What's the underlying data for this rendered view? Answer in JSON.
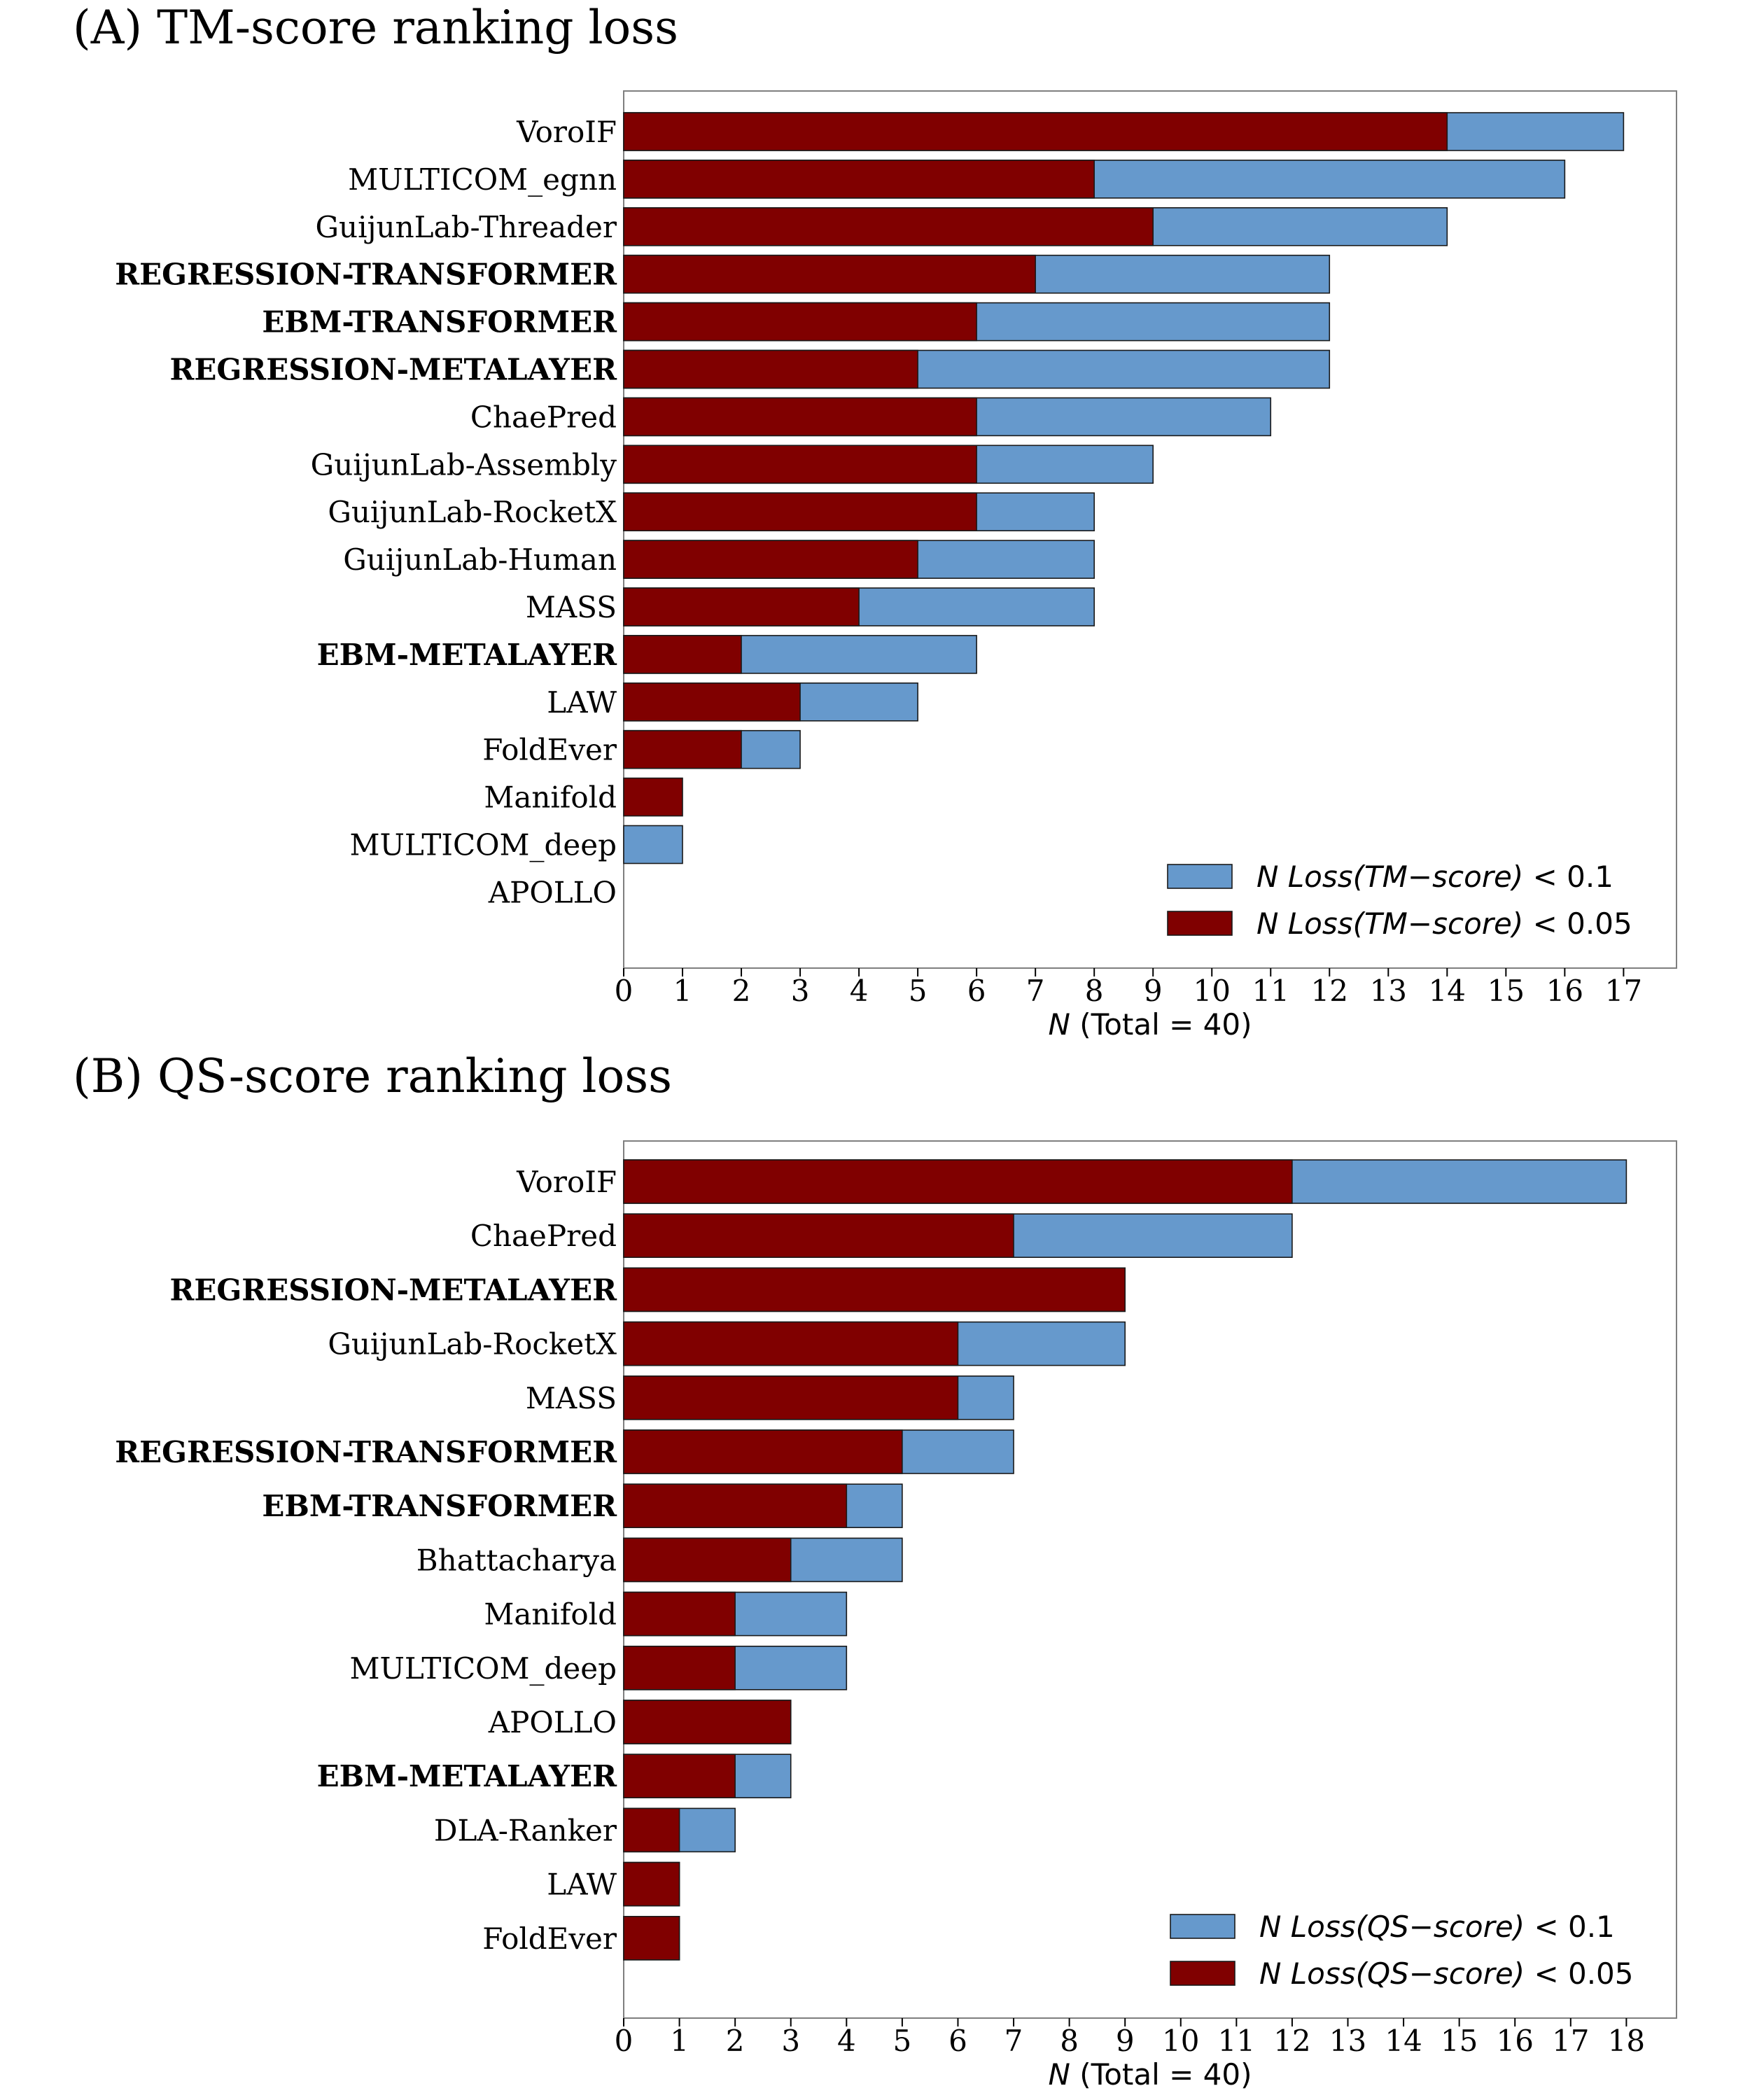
{
  "chart_data": [
    {
      "type": "bar",
      "orientation": "horizontal",
      "stacked": false,
      "title": "(A) TM-score ranking loss",
      "xlabel_italic": "N",
      "xlabel_rest": " (Total = 40)",
      "xlim": [
        0,
        17.9
      ],
      "xticks": [
        0,
        1,
        2,
        3,
        4,
        5,
        6,
        7,
        8,
        9,
        10,
        11,
        12,
        13,
        14,
        15,
        16,
        17
      ],
      "categories": [
        "VoroIF",
        "MULTICOM_egnn",
        "GuijunLab-Threader",
        "REGRESSION-TRANSFORMER",
        "EBM-TRANSFORMER",
        "REGRESSION-METALAYER",
        "ChaePred",
        "GuijunLab-Assembly",
        "GuijunLab-RocketX",
        "GuijunLab-Human",
        "MASS",
        "EBM-METALAYER",
        "LAW",
        "FoldEver",
        "Manifold",
        "MULTICOM_deep",
        "APOLLO"
      ],
      "bold_categories": [
        "REGRESSION-TRANSFORMER",
        "EBM-TRANSFORMER",
        "REGRESSION-METALAYER",
        "EBM-METALAYER"
      ],
      "series": [
        {
          "name": "N Loss(TM−score) < 0.1",
          "legend_var": "N Loss(TM−score)",
          "legend_rest": " < 0.1",
          "color": "#6699cc",
          "values": [
            17,
            16,
            14,
            12,
            12,
            12,
            11,
            9,
            8,
            8,
            8,
            6,
            5,
            3,
            0,
            1,
            0
          ]
        },
        {
          "name": "N Loss(TM−score) < 0.05",
          "legend_var": "N Loss(TM−score)",
          "legend_rest": " < 0.05",
          "color": "#800000",
          "values": [
            14,
            8,
            9,
            7,
            6,
            5,
            6,
            6,
            6,
            5,
            4,
            2,
            3,
            2,
            1,
            0,
            0
          ]
        }
      ],
      "legend_position": "bottom-right",
      "grid": false
    },
    {
      "type": "bar",
      "orientation": "horizontal",
      "stacked": false,
      "title": "(B) QS-score ranking loss",
      "xlabel_italic": "N",
      "xlabel_rest": " (Total = 40)",
      "xlim": [
        0,
        18.9
      ],
      "xticks": [
        0,
        1,
        2,
        3,
        4,
        5,
        6,
        7,
        8,
        9,
        10,
        11,
        12,
        13,
        14,
        15,
        16,
        17,
        18
      ],
      "categories": [
        "VoroIF",
        "ChaePred",
        "REGRESSION-METALAYER",
        "GuijunLab-RocketX",
        "MASS",
        "REGRESSION-TRANSFORMER",
        "EBM-TRANSFORMER",
        "Bhattacharya",
        "Manifold",
        "MULTICOM_deep",
        "APOLLO",
        "EBM-METALAYER",
        "DLA-Ranker",
        "LAW",
        "FoldEver"
      ],
      "bold_categories": [
        "REGRESSION-METALAYER",
        "REGRESSION-TRANSFORMER",
        "EBM-TRANSFORMER",
        "EBM-METALAYER"
      ],
      "series": [
        {
          "name": "N Loss(QS−score) < 0.1",
          "legend_var": "N Loss(QS−score)",
          "legend_rest": " < 0.1",
          "color": "#6699cc",
          "values": [
            18,
            12,
            9,
            9,
            7,
            7,
            5,
            5,
            4,
            4,
            3,
            3,
            2,
            1,
            1
          ]
        },
        {
          "name": "N Loss(QS−score) < 0.05",
          "legend_var": "N Loss(QS−score)",
          "legend_rest": " < 0.05",
          "color": "#800000",
          "values": [
            12,
            7,
            9,
            6,
            6,
            5,
            4,
            3,
            2,
            2,
            3,
            2,
            1,
            1,
            1
          ]
        }
      ],
      "legend_position": "bottom-right",
      "grid": false
    }
  ]
}
